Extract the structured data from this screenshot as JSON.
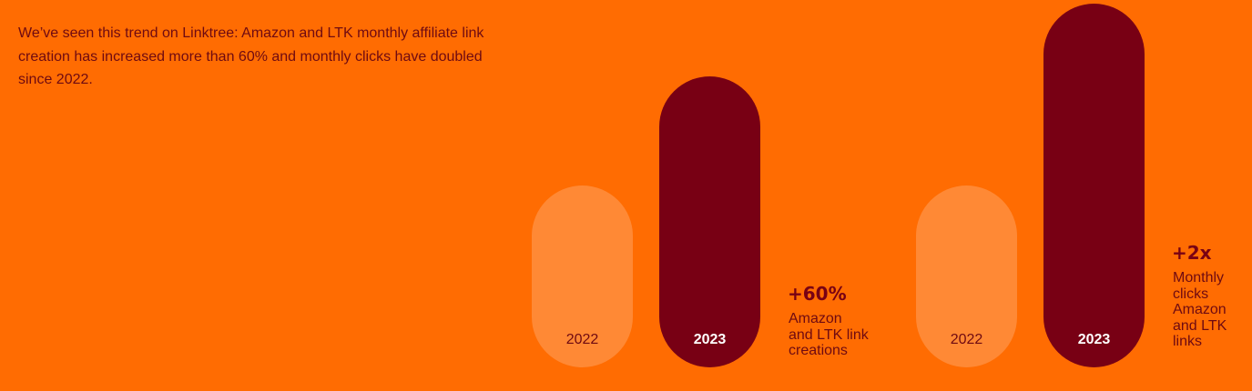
{
  "intro_text": "We’ve seen this trend on Linktree: Amazon and LTK monthly affiliate link creation has increased more than 60% and monthly clicks have doubled since 2022.",
  "colors": {
    "background": "#FF6C02",
    "bar_2022": "#FF8935",
    "bar_2023": "#780014",
    "text_dark": "#6E0A12"
  },
  "chart_data": [
    {
      "type": "bar",
      "categories": [
        "2022",
        "2023"
      ],
      "values": [
        100,
        160
      ],
      "value_label": "+60%",
      "description": [
        "Amazon",
        "and LTK link",
        "creations"
      ]
    },
    {
      "type": "bar",
      "categories": [
        "2022",
        "2023"
      ],
      "values": [
        100,
        200
      ],
      "value_label": "+2x",
      "description": [
        "Monthly",
        "clicks",
        "Amazon",
        "and LTK",
        "links"
      ]
    }
  ]
}
